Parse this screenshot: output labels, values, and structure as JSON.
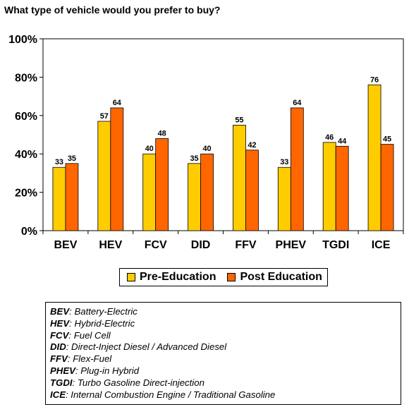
{
  "title": "What type of vehicle would you prefer to buy?",
  "chart_data": {
    "type": "bar",
    "categories": [
      "BEV",
      "HEV",
      "FCV",
      "DID",
      "FFV",
      "PHEV",
      "TGDI",
      "ICE"
    ],
    "series": [
      {
        "name": "Pre-Education",
        "values": [
          33,
          57,
          40,
          35,
          55,
          33,
          46,
          76
        ],
        "color": "#FFCC00"
      },
      {
        "name": "Post Education",
        "values": [
          35,
          64,
          48,
          40,
          42,
          64,
          44,
          45
        ],
        "color": "#FF6600"
      }
    ],
    "ylim": [
      0,
      100
    ],
    "yticks": [
      "0%",
      "20%",
      "40%",
      "60%",
      "80%",
      "100%"
    ],
    "grid": false,
    "legend_position": "bottom"
  },
  "glossary": [
    {
      "abbr": "BEV",
      "def": ": Battery-Electric"
    },
    {
      "abbr": "HEV",
      "def": ": Hybrid-Electric"
    },
    {
      "abbr": "FCV",
      "def": ": Fuel Cell"
    },
    {
      "abbr": "DID",
      "def": ": Direct-Inject Diesel / Advanced Diesel"
    },
    {
      "abbr": "FFV",
      "def": ": Flex-Fuel"
    },
    {
      "abbr": "PHEV",
      "def": ": Plug-in Hybrid"
    },
    {
      "abbr": "TGDI",
      "def": ": Turbo Gasoline Direct-injection"
    },
    {
      "abbr": "ICE",
      "def": ": Internal Combustion Engine / Traditional Gasoline"
    }
  ]
}
